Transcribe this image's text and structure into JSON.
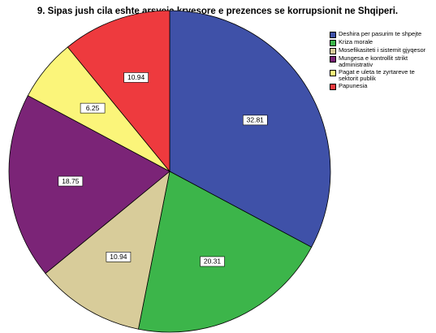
{
  "chart_data": {
    "type": "pie",
    "title": "9. Sipas jush cila eshte arsyeja kryesore e prezences se korrupsionit ne Shqiperi.",
    "categories": [
      "Deshira per pasurim te shpejte",
      "Kriza morale",
      "Mosefikasiteti i sistemit gjyqesor",
      "Mungesa e kontrollit strikt administrativ",
      "Pagat e uleta te zyrtareve te sektorit publik",
      "Papunesia"
    ],
    "values": [
      32.81,
      20.31,
      10.94,
      18.75,
      6.25,
      10.94
    ],
    "colors": [
      "#3f51a8",
      "#3cb54a",
      "#d8cc9a",
      "#7b2477",
      "#fbf57a",
      "#ee3a3e"
    ],
    "legend": "upper right"
  }
}
